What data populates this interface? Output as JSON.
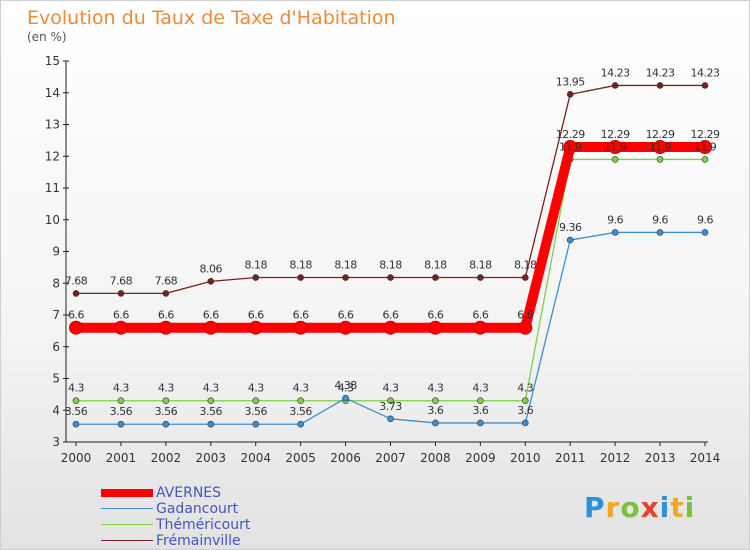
{
  "title": "Evolution du Taux de Taxe d'Habitation",
  "unit": "(en %)",
  "logo": {
    "text": "Proxiti",
    "letters": [
      {
        "ch": "P",
        "color": "#2f8fd8"
      },
      {
        "ch": "r",
        "color": "#f5a623"
      },
      {
        "ch": "o",
        "color": "#7cbf3a"
      },
      {
        "ch": "x",
        "color": "#e8402a"
      },
      {
        "ch": "i",
        "color": "#2f8fd8"
      },
      {
        "ch": "t",
        "color": "#f5a623"
      },
      {
        "ch": "i",
        "color": "#7cbf3a"
      }
    ]
  },
  "chart_data": {
    "type": "line",
    "title": "Evolution du Taux de Taxe d'Habitation",
    "ylabel": "(en %)",
    "xlabel": "",
    "x": [
      2000,
      2001,
      2002,
      2003,
      2004,
      2005,
      2006,
      2007,
      2008,
      2009,
      2010,
      2011,
      2012,
      2013,
      2014
    ],
    "ylim": [
      3,
      15
    ],
    "yticks": [
      3,
      4,
      5,
      6,
      7,
      8,
      9,
      10,
      11,
      12,
      13,
      14,
      15
    ],
    "grid": false,
    "legend": "bottom-left",
    "series": [
      {
        "name": "AVERNES",
        "color": "#ff0000",
        "values": [
          6.6,
          6.6,
          6.6,
          6.6,
          6.6,
          6.6,
          6.6,
          6.6,
          6.6,
          6.6,
          6.6,
          12.29,
          12.29,
          12.29,
          12.29
        ],
        "labels": [
          "6.6",
          "6.6",
          "6.6",
          "6.6",
          "6.6",
          "6.6",
          "6.6",
          "6.6",
          "6.6",
          "6.6",
          "6.6",
          "12.29",
          "12.29",
          "12.29",
          "12.29"
        ]
      },
      {
        "name": "Gadancourt",
        "color": "#3e8fd1",
        "values": [
          3.56,
          3.56,
          3.56,
          3.56,
          3.56,
          3.56,
          4.38,
          3.73,
          3.6,
          3.6,
          3.6,
          9.36,
          9.6,
          9.6,
          9.6
        ],
        "labels": [
          "3.56",
          "3.56",
          "3.56",
          "3.56",
          "3.56",
          "3.56",
          "4.38",
          "3.73",
          "3.6",
          "3.6",
          "3.6",
          "9.36",
          "9.6",
          "9.6",
          "9.6"
        ]
      },
      {
        "name": "Théméricourt",
        "color": "#80d048",
        "values": [
          4.3,
          4.3,
          4.3,
          4.3,
          4.3,
          4.3,
          4.3,
          4.3,
          4.3,
          4.3,
          4.3,
          11.9,
          11.9,
          11.9,
          11.9
        ],
        "labels": [
          "4.3",
          "4.3",
          "4.3",
          "4.3",
          "4.3",
          "4.3",
          "4.3",
          "4.3",
          "4.3",
          "4.3",
          "4.3",
          "11.9",
          "11.9",
          "11.9",
          "11.9"
        ]
      },
      {
        "name": "Frémainville",
        "color": "#7a1f1f",
        "values": [
          7.68,
          7.68,
          7.68,
          8.06,
          8.18,
          8.18,
          8.18,
          8.18,
          8.18,
          8.18,
          8.18,
          13.95,
          14.23,
          14.23,
          14.23
        ],
        "labels": [
          "7.68",
          "7.68",
          "7.68",
          "8.06",
          "8.18",
          "8.18",
          "8.18",
          "8.18",
          "8.18",
          "8.18",
          "8.18",
          "13.95",
          "14.23",
          "14.23",
          "14.23"
        ]
      }
    ]
  }
}
